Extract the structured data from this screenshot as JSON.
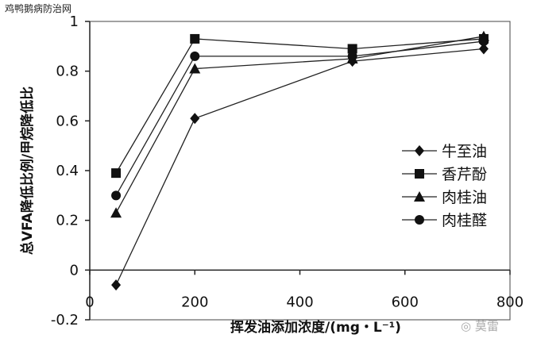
{
  "watermark": {
    "top_text": "鸡鸭鹅病防治网",
    "bottom_text": "莫雷"
  },
  "chart_data": {
    "type": "line",
    "title": "",
    "xlabel": "挥发油添加浓度/(mg・L⁻¹)",
    "ylabel": "总VFA降低比例/甲烷降低比",
    "xlim": [
      0,
      800
    ],
    "ylim": [
      -0.2,
      1
    ],
    "x_ticks": [
      "0",
      "200",
      "400",
      "600",
      "800"
    ],
    "y_ticks": [
      "-0.2",
      "0",
      "0.2",
      "0.4",
      "0.6",
      "0.8",
      "1"
    ],
    "grid": false,
    "legend_position": "right",
    "x": [
      50,
      200,
      500,
      750
    ],
    "series": [
      {
        "name": "牛至油",
        "marker": "diamond",
        "values": [
          -0.06,
          0.61,
          0.84,
          0.89
        ]
      },
      {
        "name": "香芹酚",
        "marker": "square",
        "values": [
          0.39,
          0.93,
          0.89,
          0.93
        ]
      },
      {
        "name": "肉桂油",
        "marker": "triangle",
        "values": [
          0.23,
          0.81,
          0.85,
          0.94
        ]
      },
      {
        "name": "肉桂醛",
        "marker": "circle",
        "values": [
          0.3,
          0.86,
          0.86,
          0.92
        ]
      }
    ]
  }
}
